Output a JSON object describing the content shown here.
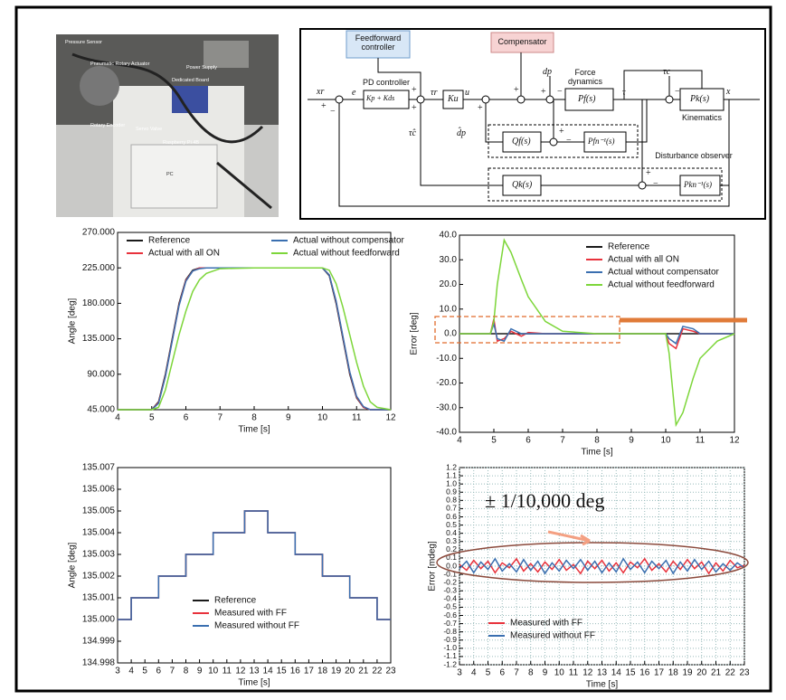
{
  "photo": {
    "labels": [
      "Pressure Sensor",
      "Pneumatic Rotary Actuator",
      "Power Supply",
      "Dedicated Board",
      "Rotary Encoder",
      "Servo Valve",
      "Raspberry Pi 4B",
      "PC"
    ]
  },
  "diagram": {
    "feedforward": "Feedforward controller",
    "compensator": "Compensator",
    "pd_controller": "PD controller",
    "force_dynamics": "Force dynamics",
    "kinematics": "Kinematics",
    "disturbance_observer": "Disturbance observer",
    "symbols": {
      "xr": "xr",
      "e": "e",
      "pd": "Kp + Kds",
      "tau_r": "τr",
      "ku": "Ku",
      "u": "u",
      "dp": "dp",
      "pf": "Pf(s)",
      "tau": "τ",
      "tau_c": "τc",
      "pk": "Pk(s)",
      "x": "x",
      "qf": "Qf(s)",
      "pfn": "Pfn⁻¹(s)",
      "qk": "Qk(s)",
      "pkn": "Pkn⁻¹(s)",
      "dp_hat": "d̂p",
      "tau_c_hat": "τ̂c"
    },
    "plus": "+",
    "minus": "−"
  },
  "chart_data": [
    {
      "type": "line",
      "xlabel": "Time [s]",
      "ylabel": "Angle [deg]",
      "x": [
        4,
        5,
        5.2,
        5.4,
        5.6,
        5.8,
        6,
        6.2,
        6.4,
        6.6,
        7,
        8,
        9,
        10,
        10.2,
        10.4,
        10.6,
        10.8,
        11,
        11.2,
        11.4,
        11.6,
        12
      ],
      "series": [
        {
          "name": "Reference",
          "color": "#1a1a1a",
          "values": [
            45,
            45,
            55,
            90,
            135,
            180,
            210,
            222,
            225,
            225,
            225,
            225,
            225,
            225,
            215,
            180,
            135,
            90,
            60,
            48,
            45,
            45,
            45
          ]
        },
        {
          "name": "Actual with all ON",
          "color": "#e8323c",
          "values": [
            45,
            45,
            54,
            88,
            133,
            178,
            209,
            221,
            225,
            225,
            225,
            225,
            225,
            225,
            216,
            182,
            137,
            92,
            61,
            48,
            45,
            45,
            45
          ]
        },
        {
          "name": "Actual without compensator",
          "color": "#3a6fb0",
          "values": [
            45,
            45,
            53,
            87,
            132,
            177,
            208,
            221,
            224,
            225,
            225,
            225,
            225,
            225,
            216,
            183,
            138,
            93,
            62,
            49,
            45,
            45,
            45
          ]
        },
        {
          "name": "Actual without feedforward",
          "color": "#7dd63a",
          "values": [
            45,
            45,
            48,
            70,
            105,
            140,
            170,
            195,
            210,
            218,
            224,
            225,
            225,
            225,
            222,
            205,
            175,
            140,
            105,
            75,
            55,
            48,
            45
          ]
        }
      ],
      "xlim": [
        4,
        12
      ],
      "xticks": [
        4,
        5,
        6,
        7,
        8,
        9,
        10,
        11,
        12
      ],
      "ylim": [
        45,
        270
      ],
      "yticks": [
        {
          "value": 45,
          "label": "45.000"
        },
        {
          "value": 90,
          "label": "90.000"
        },
        {
          "value": 135,
          "label": "135.000"
        },
        {
          "value": 180,
          "label": "180.000"
        },
        {
          "value": 225,
          "label": "225.000"
        },
        {
          "value": 270,
          "label": "270.000"
        }
      ],
      "grid": false,
      "legend": "top",
      "legend_columns": 2
    },
    {
      "type": "line",
      "xlabel": "Time [s]",
      "ylabel": "Error [deg]",
      "x": [
        4,
        4.9,
        5,
        5.1,
        5.3,
        5.5,
        5.8,
        6,
        6.5,
        7,
        8,
        9,
        10,
        10.1,
        10.3,
        10.5,
        10.8,
        11,
        11.5,
        12
      ],
      "series": [
        {
          "name": "Reference",
          "color": "#1a1a1a",
          "values": [
            0,
            0,
            0,
            0,
            0,
            0,
            0,
            0,
            0,
            0,
            0,
            0,
            0,
            0,
            0,
            0,
            0,
            0,
            0,
            0
          ]
        },
        {
          "name": "Actual with all ON",
          "color": "#e8323c",
          "values": [
            0,
            0,
            6,
            -3,
            -2,
            1,
            -1,
            0.5,
            0,
            0,
            0,
            0,
            0,
            -4,
            -6,
            2,
            1,
            0,
            0,
            0
          ]
        },
        {
          "name": "Actual without compensator",
          "color": "#3a6fb0",
          "values": [
            0,
            0,
            4,
            -2,
            -3,
            2,
            0,
            0,
            0,
            0,
            0,
            0,
            0,
            -2,
            -4,
            3,
            2,
            0,
            0,
            0
          ]
        },
        {
          "name": "Actual without feedforward",
          "color": "#7dd63a",
          "values": [
            0,
            0,
            5,
            20,
            38,
            33,
            22,
            15,
            5,
            1,
            0,
            0,
            0,
            -8,
            -37,
            -32,
            -18,
            -10,
            -3,
            0
          ]
        }
      ],
      "xlim": [
        4,
        12
      ],
      "xticks": [
        4,
        5,
        6,
        7,
        8,
        9,
        10,
        11,
        12
      ],
      "ylim": [
        -40,
        40
      ],
      "yticks": [
        {
          "value": -40,
          "label": "-40.0"
        },
        {
          "value": -30,
          "label": "-30.0"
        },
        {
          "value": -20,
          "label": "-20.0"
        },
        {
          "value": -10,
          "label": "-10.0"
        },
        {
          "value": 0,
          "label": "0.0"
        },
        {
          "value": 10,
          "label": "10.0"
        },
        {
          "value": 20,
          "label": "20.0"
        },
        {
          "value": 30,
          "label": "30.0"
        },
        {
          "value": 40,
          "label": "40.0"
        }
      ],
      "grid": false,
      "legend": "upper right"
    },
    {
      "type": "line",
      "xlabel": "Time [s]",
      "ylabel": "Angle [deg]",
      "x": [
        3,
        4,
        4,
        6,
        6,
        8,
        8,
        10,
        10,
        12.3,
        12.3,
        14,
        14,
        16,
        16,
        18,
        18,
        20,
        20,
        22,
        22,
        23
      ],
      "series": [
        {
          "name": "Reference",
          "color": "#1a1a1a",
          "values": [
            135,
            135,
            135.001,
            135.001,
            135.002,
            135.002,
            135.003,
            135.003,
            135.004,
            135.004,
            135.005,
            135.005,
            135.004,
            135.004,
            135.003,
            135.003,
            135.002,
            135.002,
            135.001,
            135.001,
            135,
            135
          ]
        },
        {
          "name": "Measured with FF",
          "color": "#e8323c",
          "values": [
            135,
            135,
            135.001,
            135.001,
            135.002,
            135.002,
            135.003,
            135.003,
            135.004,
            135.004,
            135.005,
            135.005,
            135.004,
            135.004,
            135.003,
            135.003,
            135.002,
            135.002,
            135.001,
            135.001,
            135,
            135
          ]
        },
        {
          "name": "Measured without FF",
          "color": "#3a6fb0",
          "values": [
            135,
            135,
            135.001,
            135.001,
            135.002,
            135.002,
            135.003,
            135.003,
            135.004,
            135.004,
            135.005,
            135.005,
            135.004,
            135.004,
            135.003,
            135.003,
            135.002,
            135.002,
            135.001,
            135.001,
            135,
            135
          ]
        }
      ],
      "xlim": [
        3,
        23
      ],
      "xticks": [
        3,
        4,
        5,
        6,
        7,
        8,
        9,
        10,
        11,
        12,
        13,
        14,
        15,
        16,
        17,
        18,
        19,
        20,
        21,
        22,
        23
      ],
      "ylim": [
        134.998,
        135.007
      ],
      "yticks": [
        134.998,
        134.999,
        {
          "value": 135,
          "label": "135.000"
        },
        135.001,
        135.002,
        135.003,
        135.004,
        135.005,
        135.006,
        135.007
      ],
      "grid": false,
      "legend": "lower center"
    },
    {
      "type": "line",
      "xlabel": "Time [s]",
      "ylabel": "Error [mdeg]",
      "annotation": "± 1/10,000 deg",
      "x": [
        3,
        3.5,
        4,
        4.5,
        5,
        5.5,
        6,
        6.5,
        7,
        7.5,
        8,
        8.5,
        9,
        9.5,
        10,
        10.5,
        11,
        11.5,
        12,
        12.5,
        13,
        13.5,
        14,
        14.5,
        15,
        15.5,
        16,
        16.5,
        17,
        17.5,
        18,
        18.5,
        19,
        19.5,
        20,
        20.5,
        21,
        21.5,
        22,
        22.5,
        23
      ],
      "series": [
        {
          "name": "Measured with FF",
          "color": "#e8323c",
          "values": [
            0.02,
            -0.05,
            0.07,
            -0.03,
            0.06,
            -0.08,
            0.04,
            -0.02,
            0.09,
            -0.06,
            0.03,
            -0.07,
            0.05,
            -0.04,
            0.08,
            -0.05,
            0.02,
            -0.09,
            0.06,
            -0.03,
            0.07,
            -0.06,
            0.04,
            -0.08,
            0.05,
            -0.02,
            0.09,
            -0.05,
            0.03,
            -0.07,
            0.06,
            -0.04,
            0.08,
            -0.03,
            0.05,
            -0.09,
            0.04,
            -0.06,
            0.07,
            -0.02,
            0.01
          ]
        },
        {
          "name": "Measured without FF",
          "color": "#3a6fb0",
          "values": [
            -0.03,
            0.06,
            -0.08,
            0.05,
            -0.04,
            0.09,
            -0.06,
            0.03,
            -0.07,
            0.08,
            -0.05,
            0.06,
            -0.09,
            0.04,
            -0.06,
            0.07,
            -0.03,
            0.08,
            -0.05,
            0.06,
            -0.08,
            0.04,
            -0.07,
            0.09,
            -0.04,
            0.05,
            -0.08,
            0.06,
            -0.03,
            0.07,
            -0.09,
            0.05,
            -0.06,
            0.08,
            -0.04,
            0.06,
            -0.07,
            0.03,
            -0.05,
            0.04,
            -0.02
          ]
        }
      ],
      "xlim": [
        3,
        23
      ],
      "xticks": [
        3,
        4,
        5,
        6,
        7,
        8,
        9,
        10,
        11,
        12,
        13,
        14,
        15,
        16,
        17,
        18,
        19,
        20,
        21,
        22,
        23
      ],
      "ylim": [
        -1.2,
        1.2
      ],
      "yticks": [
        -1.2,
        -1.1,
        {
          "value": -1,
          "label": "-1.0"
        },
        -0.9,
        -0.8,
        -0.7,
        -0.6,
        -0.5,
        -0.4,
        -0.3,
        -0.2,
        -0.1,
        {
          "value": 0,
          "label": "0.0"
        },
        0.1,
        0.2,
        0.3,
        0.4,
        0.5,
        0.6,
        0.7,
        0.8,
        0.9,
        {
          "value": 1,
          "label": "1.0"
        },
        1.1,
        1.2
      ],
      "grid": true,
      "legend": "lower left"
    }
  ]
}
